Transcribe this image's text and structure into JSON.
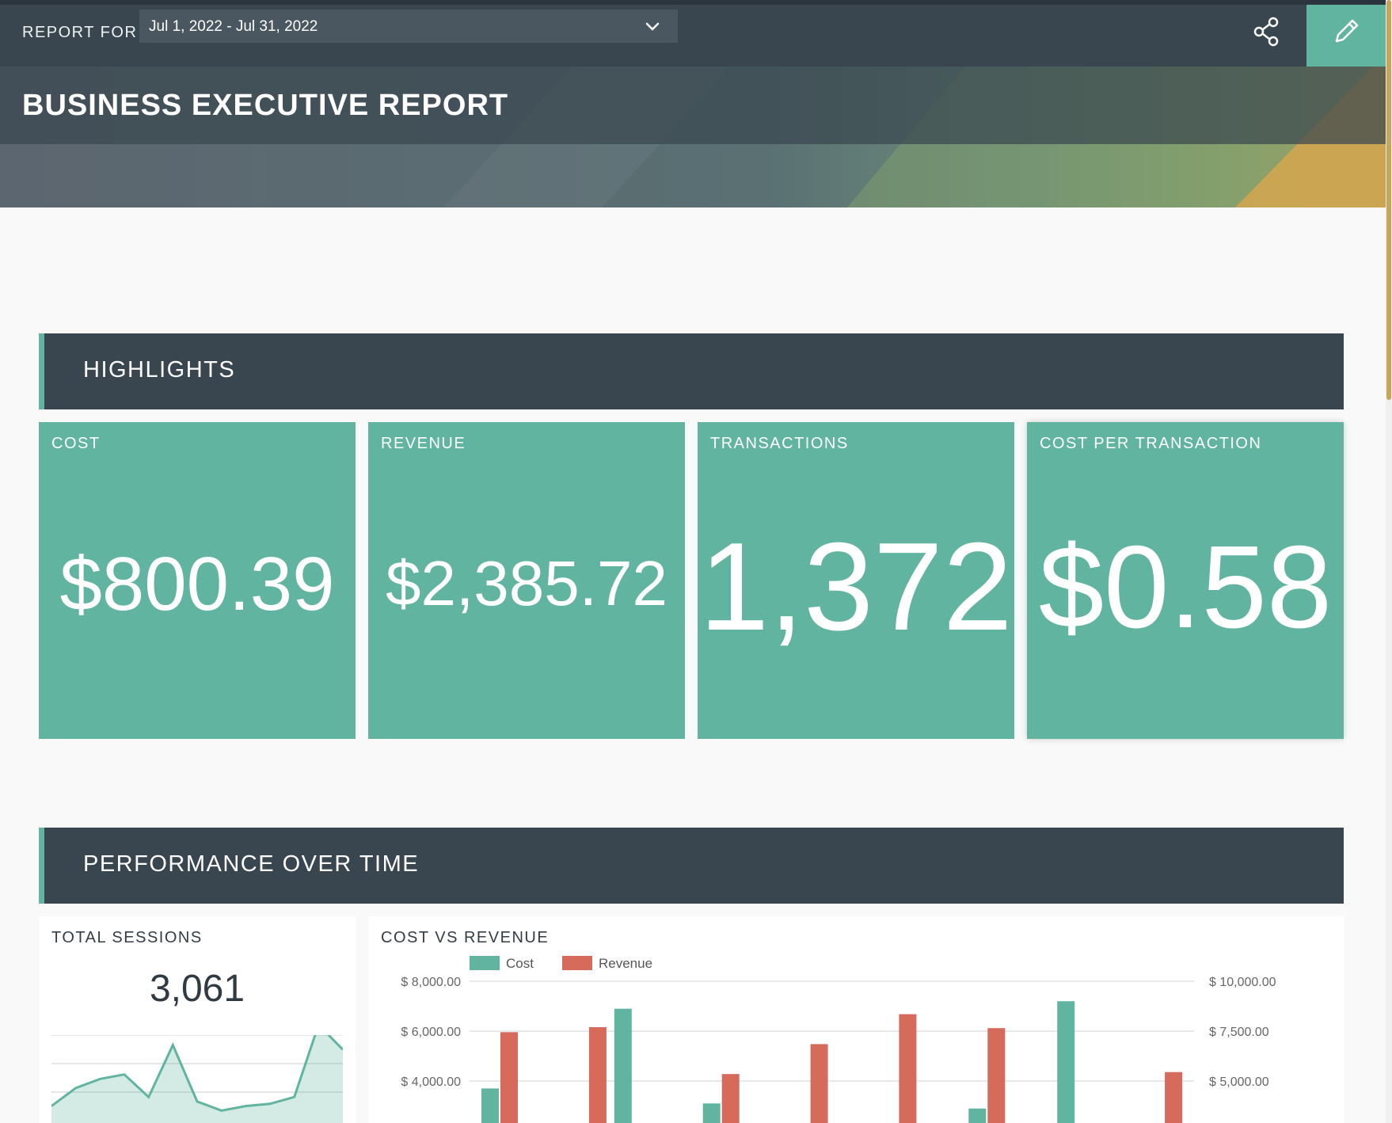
{
  "header": {
    "report_for_label": "REPORT FOR",
    "date_range": "Jul 1, 2022 - Jul 31, 2022",
    "title": "BUSINESS EXECUTIVE REPORT",
    "share_icon": "share-icon",
    "edit_icon": "pencil-icon"
  },
  "colors": {
    "accent": "#61b5a0",
    "dark": "#39464f",
    "cost": "#61b5a0",
    "revenue": "#d66a5b"
  },
  "highlights": {
    "title": "HIGHLIGHTS",
    "kpis": [
      {
        "label": "COST",
        "value": "$800.39"
      },
      {
        "label": "REVENUE",
        "value": "$2,385.72"
      },
      {
        "label": "TRANSACTIONS",
        "value": "1,372"
      },
      {
        "label": "COST PER TRANSACTION",
        "value": "$0.58"
      }
    ]
  },
  "performance": {
    "title": "PERFORMANCE OVER TIME",
    "sessions": {
      "label": "TOTAL SESSIONS",
      "value": "3,061"
    },
    "cost_vs_revenue": {
      "label": "COST VS REVENUE"
    }
  },
  "chart_data": [
    {
      "type": "area",
      "title": "TOTAL SESSIONS",
      "series": [
        {
          "values": [
            20,
            60,
            80,
            90,
            40,
            155,
            30,
            10,
            20,
            25,
            40,
            200,
            145
          ]
        }
      ],
      "grid": true
    },
    {
      "type": "bar",
      "title": "COST VS REVENUE",
      "legend": [
        "Cost",
        "Revenue"
      ],
      "legend_position": "top-left",
      "left_axis_ticks": [
        "$ 8,000.00",
        "$ 6,000.00",
        "$ 4,000.00"
      ],
      "right_axis_ticks": [
        "$ 10,000.00",
        "$ 7,500.00",
        "$ 5,000.00"
      ],
      "left_ylim_visible": [
        2600,
        8000
      ],
      "right_ylim_visible": [
        3250,
        10000
      ],
      "series": [
        {
          "name": "Cost",
          "axis": "left",
          "values": [
            3700,
            null,
            null,
            6900,
            null,
            3100,
            null,
            null,
            null,
            null,
            null,
            2900,
            null,
            7200,
            null,
            null
          ]
        },
        {
          "name": "Revenue",
          "axis": "right",
          "values": [
            7450,
            null,
            7700,
            null,
            null,
            5350,
            null,
            6850,
            null,
            8350,
            null,
            7650,
            null,
            null,
            null,
            5450
          ]
        }
      ],
      "grid": true
    }
  ]
}
